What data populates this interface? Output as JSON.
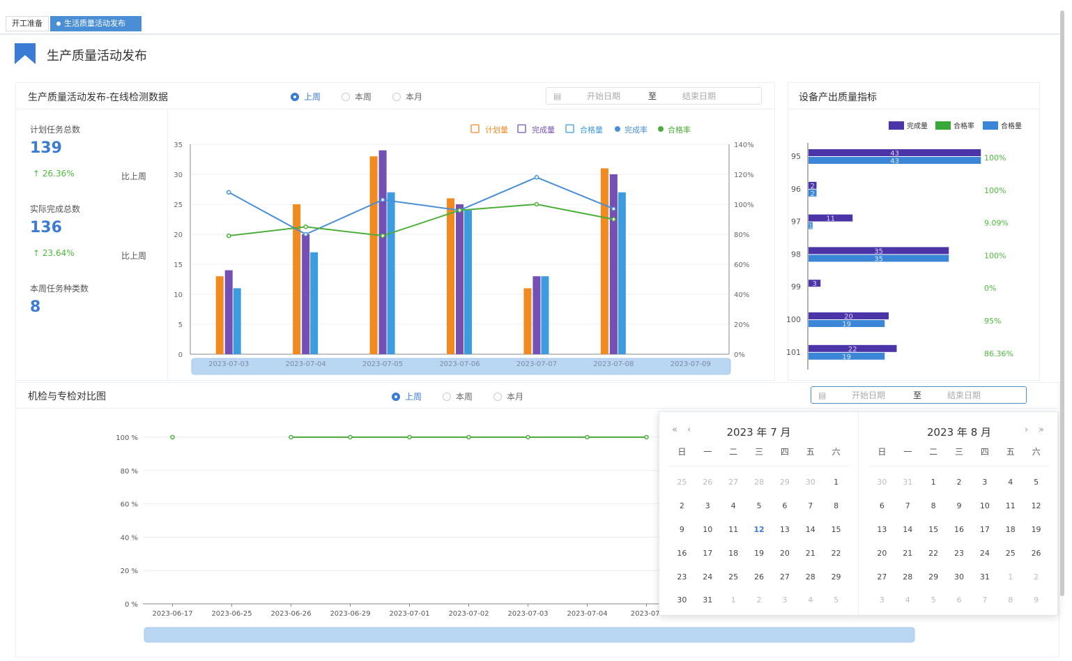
{
  "tabs": [
    {
      "label": "开工准备",
      "active": false
    },
    {
      "label": "生活质量活动发布",
      "active": true,
      "close": "×"
    }
  ],
  "page_title": "生产质量活动发布",
  "colors": {
    "accent": "#3a7bd5",
    "plan": "#f28a22",
    "done": "#7450b5",
    "pass": "#3d9be0",
    "done_rate": "#4a8fd6",
    "pass_rate": "#4cae3a",
    "right_done": "#4b33a8",
    "right_pass": "#3c86d8"
  },
  "top_panel": {
    "title": "生产质量活动发布-在线检测数据",
    "radios": [
      {
        "label": "上周",
        "checked": true
      },
      {
        "label": "本周",
        "checked": false
      },
      {
        "label": "本月",
        "checked": false
      }
    ],
    "date_range": {
      "start_placeholder": "开始日期",
      "sep": "至",
      "end_placeholder": "结束日期",
      "icon": "calendar-icon"
    },
    "stats": [
      {
        "label": "计划任务总数",
        "value": "139",
        "change": "26.36%",
        "compare": "比上周",
        "trend": "up"
      },
      {
        "label": "实际完成总数",
        "value": "136",
        "change": "23.64%",
        "compare": "比上周",
        "trend": "up"
      },
      {
        "label": "本周任务种类数",
        "value": "8"
      }
    ]
  },
  "right_panel": {
    "title": "设备产出质量指标"
  },
  "bottom_panel": {
    "title": "机检与专检对比图",
    "radios": [
      {
        "label": "上周",
        "checked": true
      },
      {
        "label": "本周",
        "checked": false
      },
      {
        "label": "本月",
        "checked": false
      }
    ],
    "date_range": {
      "start_placeholder": "开始日期",
      "sep": "至",
      "end_placeholder": "结束日期",
      "icon": "calendar-icon"
    }
  },
  "calendar": {
    "months": [
      {
        "title": "2023 年 7 月",
        "nav": [
          "«",
          "‹"
        ],
        "weekdays": [
          "日",
          "一",
          "二",
          "三",
          "四",
          "五",
          "六"
        ],
        "days": [
          [
            "25",
            0
          ],
          [
            "26",
            0
          ],
          [
            "27",
            0
          ],
          [
            "28",
            0
          ],
          [
            "29",
            0
          ],
          [
            "30",
            0
          ],
          [
            "1",
            1
          ],
          [
            "2",
            1
          ],
          [
            "3",
            1
          ],
          [
            "4",
            1
          ],
          [
            "5",
            1
          ],
          [
            "6",
            1
          ],
          [
            "7",
            1
          ],
          [
            "8",
            1
          ],
          [
            "9",
            1
          ],
          [
            "10",
            1
          ],
          [
            "11",
            1
          ],
          [
            "12",
            2
          ],
          [
            "13",
            1
          ],
          [
            "14",
            1
          ],
          [
            "15",
            1
          ],
          [
            "16",
            1
          ],
          [
            "17",
            1
          ],
          [
            "18",
            1
          ],
          [
            "19",
            1
          ],
          [
            "20",
            1
          ],
          [
            "21",
            1
          ],
          [
            "22",
            1
          ],
          [
            "23",
            1
          ],
          [
            "24",
            1
          ],
          [
            "25",
            1
          ],
          [
            "26",
            1
          ],
          [
            "27",
            1
          ],
          [
            "28",
            1
          ],
          [
            "29",
            1
          ],
          [
            "30",
            1
          ],
          [
            "31",
            1
          ],
          [
            "1",
            0
          ],
          [
            "2",
            0
          ],
          [
            "3",
            0
          ],
          [
            "4",
            0
          ],
          [
            "5",
            0
          ]
        ]
      },
      {
        "title": "2023 年 8 月",
        "nav": [
          "›",
          "»"
        ],
        "weekdays": [
          "日",
          "一",
          "二",
          "三",
          "四",
          "五",
          "六"
        ],
        "days": [
          [
            "30",
            0
          ],
          [
            "31",
            0
          ],
          [
            "1",
            1
          ],
          [
            "2",
            1
          ],
          [
            "3",
            1
          ],
          [
            "4",
            1
          ],
          [
            "5",
            1
          ],
          [
            "6",
            1
          ],
          [
            "7",
            1
          ],
          [
            "8",
            1
          ],
          [
            "9",
            1
          ],
          [
            "10",
            1
          ],
          [
            "11",
            1
          ],
          [
            "12",
            1
          ],
          [
            "13",
            1
          ],
          [
            "14",
            1
          ],
          [
            "15",
            1
          ],
          [
            "16",
            1
          ],
          [
            "17",
            1
          ],
          [
            "18",
            1
          ],
          [
            "19",
            1
          ],
          [
            "20",
            1
          ],
          [
            "21",
            1
          ],
          [
            "22",
            1
          ],
          [
            "23",
            1
          ],
          [
            "24",
            1
          ],
          [
            "25",
            1
          ],
          [
            "26",
            1
          ],
          [
            "27",
            1
          ],
          [
            "28",
            1
          ],
          [
            "29",
            1
          ],
          [
            "30",
            1
          ],
          [
            "31",
            1
          ],
          [
            "1",
            0
          ],
          [
            "2",
            0
          ],
          [
            "3",
            0
          ],
          [
            "4",
            0
          ],
          [
            "5",
            0
          ],
          [
            "6",
            0
          ],
          [
            "7",
            0
          ],
          [
            "8",
            0
          ],
          [
            "9",
            0
          ]
        ]
      }
    ]
  },
  "chart_data": [
    {
      "type": "bar",
      "categories": [
        "2023-07-03",
        "2023-07-04",
        "2023-07-05",
        "2023-07-06",
        "2023-07-07",
        "2023-07-08",
        "2023-07-09"
      ],
      "legend": [
        {
          "name": "计划量",
          "icon": "plan-icon"
        },
        {
          "name": "完成量",
          "icon": "check-box-icon"
        },
        {
          "name": "合格量",
          "icon": "quality-icon"
        },
        {
          "name": "完成率",
          "icon": "dot"
        },
        {
          "name": "合格率",
          "icon": "dot"
        }
      ],
      "series": [
        {
          "name": "计划量",
          "type": "bar",
          "axis": "left",
          "values": [
            13,
            25,
            33,
            26,
            11,
            31,
            null
          ]
        },
        {
          "name": "完成量",
          "type": "bar",
          "axis": "left",
          "values": [
            14,
            20,
            34,
            25,
            13,
            30,
            null
          ]
        },
        {
          "name": "合格量",
          "type": "bar",
          "axis": "left",
          "values": [
            11,
            17,
            27,
            24,
            13,
            27,
            null
          ]
        },
        {
          "name": "完成率",
          "type": "line",
          "axis": "right",
          "values": [
            108,
            80,
            103,
            96,
            118,
            97,
            null
          ]
        },
        {
          "name": "合格率",
          "type": "line",
          "axis": "right",
          "values": [
            79,
            85,
            79,
            96,
            100,
            90,
            null
          ]
        }
      ],
      "ylim": [
        0,
        35
      ],
      "yticks": [
        0,
        5,
        10,
        15,
        20,
        25,
        30,
        35
      ],
      "y2lim": [
        0,
        140
      ],
      "y2ticks": [
        "0%",
        "20%",
        "40%",
        "60%",
        "80%",
        "100%",
        "120%",
        "140%"
      ],
      "grid": true,
      "legend_position": "top-right",
      "datazoom": true
    },
    {
      "type": "bar",
      "orientation": "horizontal",
      "categories": [
        "95",
        "96",
        "97",
        "98",
        "99",
        "100",
        "101"
      ],
      "legend": [
        "完成量",
        "合格率",
        "合格量"
      ],
      "series": [
        {
          "name": "完成量",
          "values": [
            43,
            2,
            11,
            35,
            3,
            20,
            22
          ]
        },
        {
          "name": "合格量",
          "values": [
            43,
            2,
            1,
            35,
            0,
            19,
            19
          ]
        },
        {
          "name": "合格率",
          "labels": [
            "100%",
            "100%",
            "9.09%",
            "100%",
            "0%",
            "95%",
            "86.36%"
          ]
        }
      ],
      "legend_position": "top-right"
    },
    {
      "type": "line",
      "categories": [
        "2023-06-17",
        "2023-06-25",
        "2023-06-26",
        "2023-06-29",
        "2023-07-01",
        "2023-07-02",
        "2023-07-03",
        "2023-07-04",
        "2023-07-"
      ],
      "values": [
        100,
        null,
        100,
        100,
        100,
        100,
        100,
        100,
        100
      ],
      "ylim": [
        0,
        100
      ],
      "yticks": [
        "0 %",
        "20 %",
        "40 %",
        "60 %",
        "80 %",
        "100 %"
      ],
      "grid": true,
      "datazoom": true
    }
  ]
}
